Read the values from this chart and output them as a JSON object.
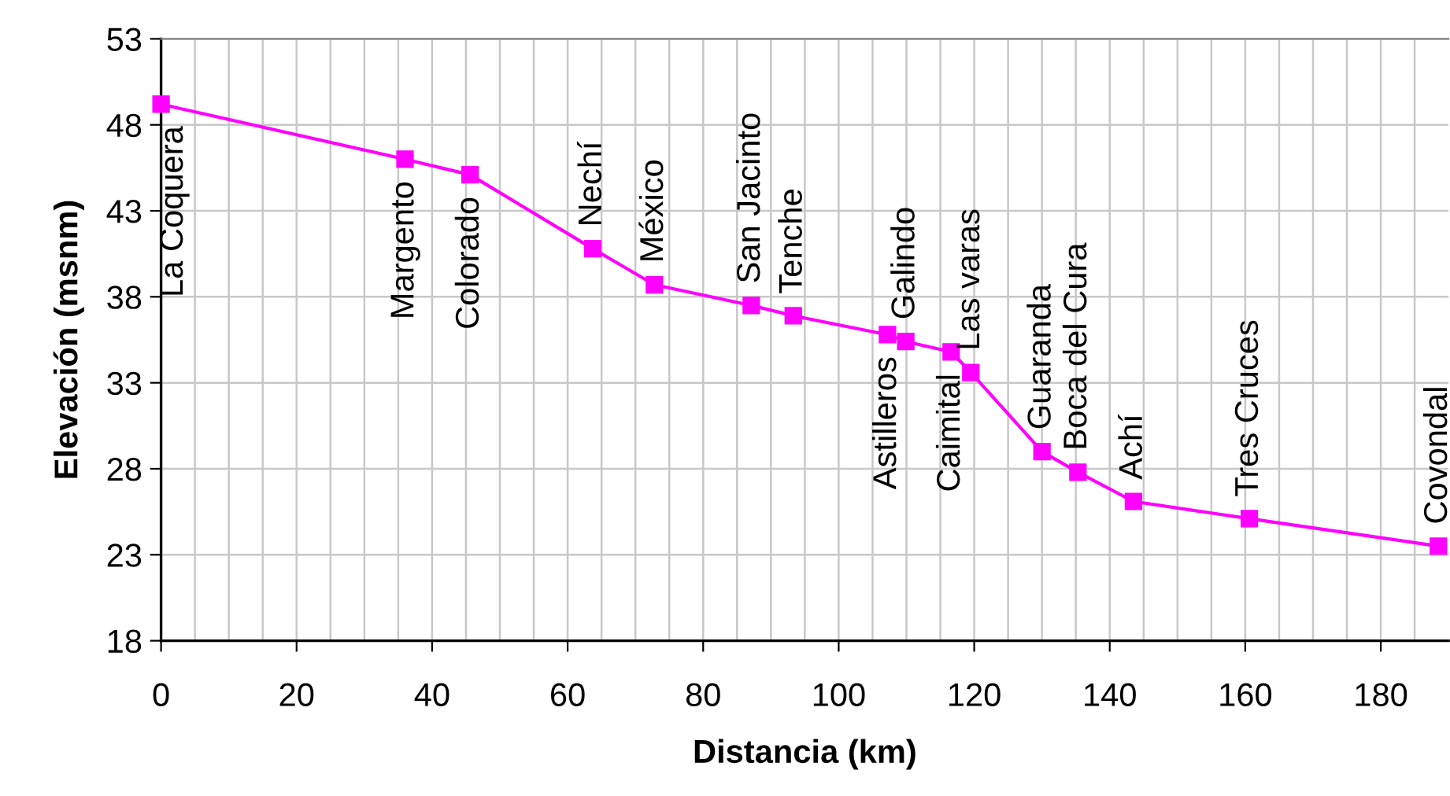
{
  "chart_data": {
    "type": "line",
    "xlabel": "Distancia (km)",
    "ylabel": "Elevación (msnm)",
    "x": [
      0,
      36.0,
      45.6,
      63.7,
      72.8,
      87.1,
      93.3,
      107.2,
      109.9,
      116.6,
      119.5,
      130.0,
      135.3,
      143.5,
      160.6,
      188.5
    ],
    "series": [
      {
        "color": "#ff00ff",
        "values": [
          49.2,
          46.0,
          45.1,
          40.8,
          38.7,
          37.5,
          36.9,
          35.8,
          35.4,
          34.8,
          33.6,
          29.0,
          27.8,
          26.1,
          25.1,
          23.5
        ]
      }
    ],
    "annotations": [
      {
        "text": "La Coquera",
        "x": 0,
        "y": 49.2
      },
      {
        "text": "Margento",
        "x": 36.0,
        "y": 46.0
      },
      {
        "text": "Colorado",
        "x": 45.6,
        "y": 45.1
      },
      {
        "text": "Nechí",
        "x": 63.7,
        "y": 40.8
      },
      {
        "text": "México",
        "x": 72.8,
        "y": 38.7
      },
      {
        "text": "San Jacinto",
        "x": 87.1,
        "y": 37.5
      },
      {
        "text": "Tenche",
        "x": 93.3,
        "y": 36.9
      },
      {
        "text": "Astilleros",
        "x": 107.2,
        "y": 35.8
      },
      {
        "text": "Galindo",
        "x": 109.9,
        "y": 35.4
      },
      {
        "text": "Caimital",
        "x": 116.6,
        "y": 34.8
      },
      {
        "text": "Las varas",
        "x": 119.5,
        "y": 33.6
      },
      {
        "text": "Guaranda",
        "x": 130.0,
        "y": 29.0
      },
      {
        "text": "Boca del Cura",
        "x": 135.3,
        "y": 27.8
      },
      {
        "text": "Achí",
        "x": 143.5,
        "y": 26.1
      },
      {
        "text": "Tres Cruces",
        "x": 160.6,
        "y": 25.1
      },
      {
        "text": "Covondal",
        "x": 188.5,
        "y": 23.5
      }
    ],
    "xlim": [
      0,
      190
    ],
    "ylim": [
      18,
      53
    ],
    "xticks": [
      0,
      {
        "value": 5,
        "label": null
      },
      {
        "value": 10,
        "label": null
      },
      {
        "value": 15,
        "label": null
      },
      20,
      {
        "value": 25,
        "label": null
      },
      {
        "value": 30,
        "label": null
      },
      {
        "value": 35,
        "label": null
      },
      40,
      {
        "value": 45,
        "label": null
      },
      {
        "value": 50,
        "label": null
      },
      {
        "value": 55,
        "label": null
      },
      60,
      {
        "value": 65,
        "label": null
      },
      {
        "value": 70,
        "label": null
      },
      {
        "value": 75,
        "label": null
      },
      80,
      {
        "value": 85,
        "label": null
      },
      {
        "value": 90,
        "label": null
      },
      {
        "value": 95,
        "label": null
      },
      100,
      {
        "value": 105,
        "label": null
      },
      {
        "value": 110,
        "label": null
      },
      {
        "value": 115,
        "label": null
      },
      120,
      {
        "value": 125,
        "label": null
      },
      {
        "value": 130,
        "label": null
      },
      {
        "value": 135,
        "label": null
      },
      140,
      {
        "value": 145,
        "label": null
      },
      {
        "value": 150,
        "label": null
      },
      {
        "value": 155,
        "label": null
      },
      160,
      {
        "value": 165,
        "label": null
      },
      {
        "value": 170,
        "label": null
      },
      {
        "value": 175,
        "label": null
      },
      180,
      {
        "value": 185,
        "label": null
      }
    ],
    "yticks": [
      18,
      23,
      28,
      33,
      38,
      43,
      48,
      53
    ],
    "grid": true,
    "marker": "square",
    "line_style": "solid"
  }
}
